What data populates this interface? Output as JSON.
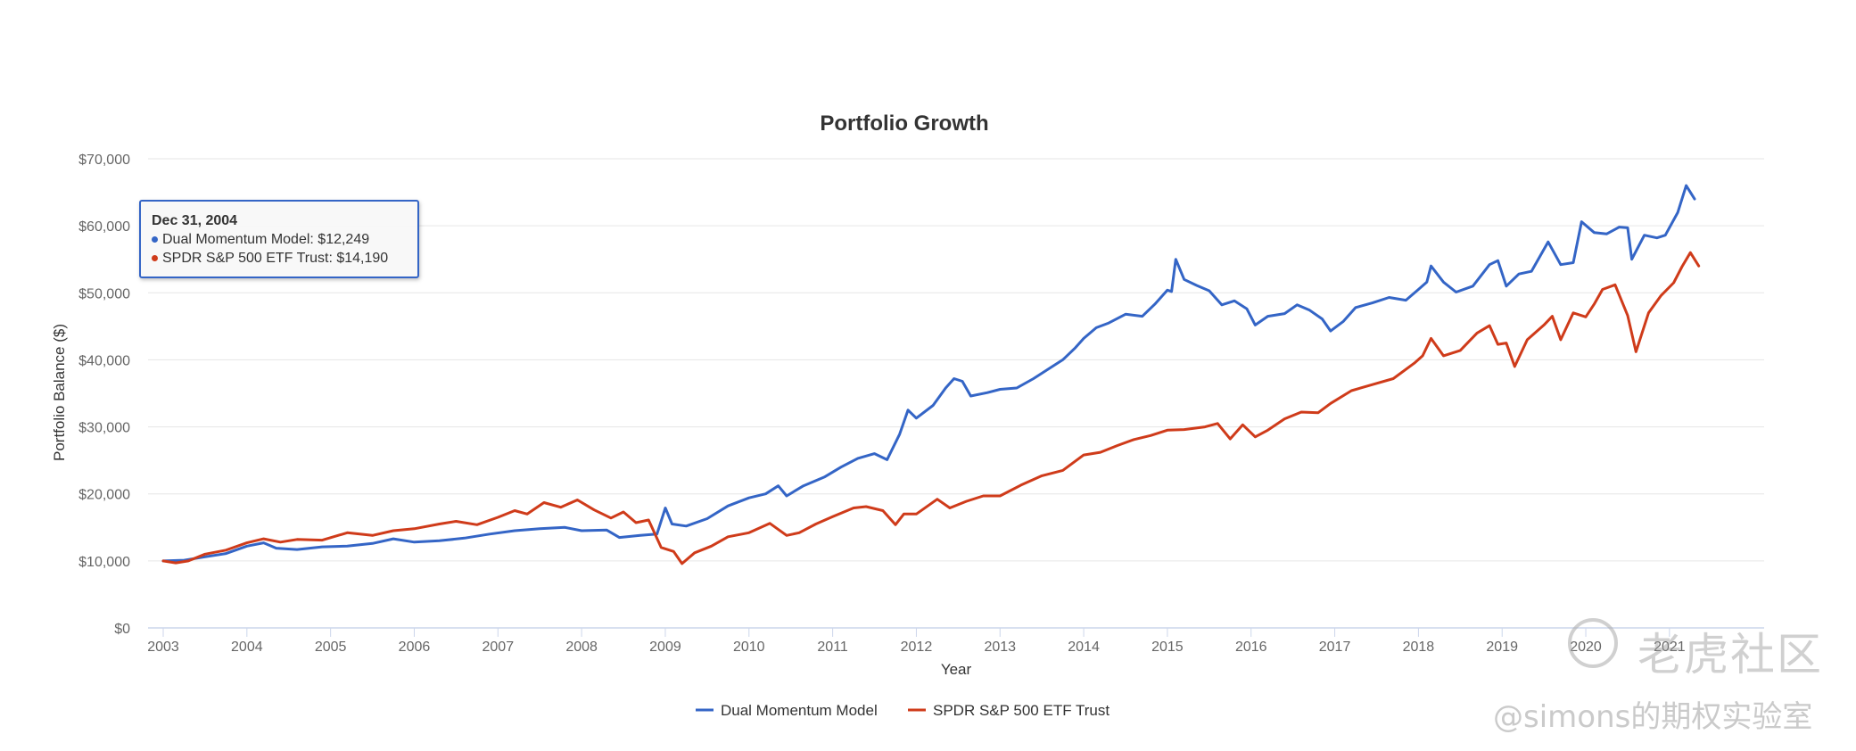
{
  "chart_data": {
    "type": "line",
    "title": "Portfolio Growth",
    "xlabel": "Year",
    "ylabel": "Portfolio Balance ($)",
    "x_ticks": [
      "2003",
      "2004",
      "2005",
      "2006",
      "2007",
      "2008",
      "2009",
      "2010",
      "2011",
      "2012",
      "2013",
      "2014",
      "2015",
      "2016",
      "2017",
      "2018",
      "2019",
      "2020",
      "2021"
    ],
    "y_ticks": [
      "$0",
      "$10,000",
      "$20,000",
      "$30,000",
      "$40,000",
      "$50,000",
      "$60,000",
      "$70,000"
    ],
    "ylim": [
      0,
      70000
    ],
    "xlim": [
      2003.0,
      2021.95
    ],
    "grid": true,
    "legend_position": "bottom-center",
    "series": [
      {
        "name": "Dual Momentum Model",
        "color": "#3465c6",
        "points": [
          [
            2003.0,
            10000
          ],
          [
            2003.25,
            10100
          ],
          [
            2003.5,
            10600
          ],
          [
            2003.75,
            11100
          ],
          [
            2004.0,
            12200
          ],
          [
            2004.2,
            12700
          ],
          [
            2004.35,
            11900
          ],
          [
            2004.6,
            11700
          ],
          [
            2004.9,
            12100
          ],
          [
            2005.2,
            12200
          ],
          [
            2005.5,
            12600
          ],
          [
            2005.75,
            13300
          ],
          [
            2006.0,
            12800
          ],
          [
            2006.3,
            13000
          ],
          [
            2006.6,
            13400
          ],
          [
            2006.9,
            14000
          ],
          [
            2007.2,
            14500
          ],
          [
            2007.5,
            14800
          ],
          [
            2007.8,
            15000
          ],
          [
            2008.0,
            14500
          ],
          [
            2008.3,
            14600
          ],
          [
            2008.45,
            13500
          ],
          [
            2008.7,
            13800
          ],
          [
            2008.9,
            14000
          ],
          [
            2009.0,
            17900
          ],
          [
            2009.08,
            15500
          ],
          [
            2009.25,
            15200
          ],
          [
            2009.5,
            16300
          ],
          [
            2009.75,
            18200
          ],
          [
            2010.0,
            19400
          ],
          [
            2010.2,
            20000
          ],
          [
            2010.35,
            21200
          ],
          [
            2010.45,
            19700
          ],
          [
            2010.65,
            21200
          ],
          [
            2010.9,
            22500
          ],
          [
            2011.1,
            24000
          ],
          [
            2011.3,
            25300
          ],
          [
            2011.5,
            26000
          ],
          [
            2011.65,
            25100
          ],
          [
            2011.8,
            28900
          ],
          [
            2011.9,
            32500
          ],
          [
            2012.0,
            31300
          ],
          [
            2012.2,
            33200
          ],
          [
            2012.35,
            35800
          ],
          [
            2012.45,
            37200
          ],
          [
            2012.55,
            36800
          ],
          [
            2012.65,
            34600
          ],
          [
            2012.85,
            35100
          ],
          [
            2013.0,
            35600
          ],
          [
            2013.2,
            35800
          ],
          [
            2013.4,
            37200
          ],
          [
            2013.6,
            38800
          ],
          [
            2013.75,
            40000
          ],
          [
            2013.9,
            41800
          ],
          [
            2014.0,
            43200
          ],
          [
            2014.15,
            44800
          ],
          [
            2014.3,
            45500
          ],
          [
            2014.5,
            46800
          ],
          [
            2014.7,
            46500
          ],
          [
            2014.85,
            48300
          ],
          [
            2015.0,
            50400
          ],
          [
            2015.05,
            50200
          ],
          [
            2015.1,
            55000
          ],
          [
            2015.2,
            52000
          ],
          [
            2015.35,
            51100
          ],
          [
            2015.5,
            50300
          ],
          [
            2015.65,
            48200
          ],
          [
            2015.8,
            48800
          ],
          [
            2015.95,
            47600
          ],
          [
            2016.05,
            45200
          ],
          [
            2016.2,
            46500
          ],
          [
            2016.4,
            46900
          ],
          [
            2016.55,
            48200
          ],
          [
            2016.7,
            47400
          ],
          [
            2016.85,
            46100
          ],
          [
            2016.95,
            44300
          ],
          [
            2017.1,
            45700
          ],
          [
            2017.25,
            47800
          ],
          [
            2017.45,
            48500
          ],
          [
            2017.65,
            49300
          ],
          [
            2017.85,
            48900
          ],
          [
            2018.0,
            50500
          ],
          [
            2018.1,
            51600
          ],
          [
            2018.15,
            54000
          ],
          [
            2018.3,
            51600
          ],
          [
            2018.45,
            50100
          ],
          [
            2018.65,
            51000
          ],
          [
            2018.85,
            54200
          ],
          [
            2018.95,
            54800
          ],
          [
            2019.05,
            51000
          ],
          [
            2019.2,
            52800
          ],
          [
            2019.35,
            53200
          ],
          [
            2019.55,
            57600
          ],
          [
            2019.7,
            54200
          ],
          [
            2019.85,
            54500
          ],
          [
            2019.95,
            60600
          ],
          [
            2020.1,
            59000
          ],
          [
            2020.25,
            58800
          ],
          [
            2020.4,
            59800
          ],
          [
            2020.5,
            59700
          ],
          [
            2020.55,
            55000
          ],
          [
            2020.7,
            58600
          ],
          [
            2020.85,
            58200
          ],
          [
            2020.95,
            58600
          ],
          [
            2021.1,
            62000
          ],
          [
            2021.2,
            66000
          ],
          [
            2021.3,
            64000
          ]
        ]
      },
      {
        "name": "SPDR S&P 500 ETF Trust",
        "color": "#cf3b1a",
        "points": [
          [
            2003.0,
            10000
          ],
          [
            2003.15,
            9700
          ],
          [
            2003.3,
            10000
          ],
          [
            2003.5,
            11000
          ],
          [
            2003.75,
            11600
          ],
          [
            2004.0,
            12700
          ],
          [
            2004.2,
            13300
          ],
          [
            2004.4,
            12800
          ],
          [
            2004.6,
            13200
          ],
          [
            2004.9,
            13100
          ],
          [
            2005.2,
            14200
          ],
          [
            2005.5,
            13800
          ],
          [
            2005.75,
            14500
          ],
          [
            2006.0,
            14800
          ],
          [
            2006.3,
            15500
          ],
          [
            2006.5,
            15900
          ],
          [
            2006.75,
            15400
          ],
          [
            2007.0,
            16500
          ],
          [
            2007.2,
            17500
          ],
          [
            2007.35,
            17000
          ],
          [
            2007.55,
            18700
          ],
          [
            2007.75,
            18000
          ],
          [
            2007.95,
            19100
          ],
          [
            2008.15,
            17600
          ],
          [
            2008.35,
            16400
          ],
          [
            2008.5,
            17300
          ],
          [
            2008.65,
            15700
          ],
          [
            2008.8,
            16100
          ],
          [
            2008.95,
            12000
          ],
          [
            2009.1,
            11400
          ],
          [
            2009.2,
            9600
          ],
          [
            2009.35,
            11200
          ],
          [
            2009.55,
            12200
          ],
          [
            2009.75,
            13600
          ],
          [
            2010.0,
            14200
          ],
          [
            2010.25,
            15600
          ],
          [
            2010.45,
            13800
          ],
          [
            2010.6,
            14200
          ],
          [
            2010.8,
            15500
          ],
          [
            2011.0,
            16600
          ],
          [
            2011.25,
            17900
          ],
          [
            2011.4,
            18100
          ],
          [
            2011.6,
            17500
          ],
          [
            2011.75,
            15400
          ],
          [
            2011.85,
            17000
          ],
          [
            2012.0,
            17000
          ],
          [
            2012.25,
            19200
          ],
          [
            2012.4,
            17900
          ],
          [
            2012.6,
            18900
          ],
          [
            2012.8,
            19700
          ],
          [
            2013.0,
            19700
          ],
          [
            2013.25,
            21300
          ],
          [
            2013.5,
            22700
          ],
          [
            2013.75,
            23500
          ],
          [
            2014.0,
            25800
          ],
          [
            2014.2,
            26200
          ],
          [
            2014.4,
            27200
          ],
          [
            2014.6,
            28100
          ],
          [
            2014.8,
            28700
          ],
          [
            2015.0,
            29500
          ],
          [
            2015.2,
            29600
          ],
          [
            2015.45,
            30000
          ],
          [
            2015.6,
            30500
          ],
          [
            2015.75,
            28200
          ],
          [
            2015.9,
            30300
          ],
          [
            2016.05,
            28500
          ],
          [
            2016.2,
            29500
          ],
          [
            2016.4,
            31200
          ],
          [
            2016.6,
            32200
          ],
          [
            2016.8,
            32100
          ],
          [
            2016.95,
            33500
          ],
          [
            2017.2,
            35400
          ],
          [
            2017.45,
            36300
          ],
          [
            2017.7,
            37200
          ],
          [
            2017.95,
            39500
          ],
          [
            2018.05,
            40600
          ],
          [
            2018.15,
            43200
          ],
          [
            2018.3,
            40600
          ],
          [
            2018.5,
            41400
          ],
          [
            2018.7,
            44000
          ],
          [
            2018.85,
            45100
          ],
          [
            2018.95,
            42300
          ],
          [
            2019.05,
            42500
          ],
          [
            2019.15,
            39000
          ],
          [
            2019.3,
            43000
          ],
          [
            2019.5,
            45200
          ],
          [
            2019.6,
            46500
          ],
          [
            2019.7,
            43000
          ],
          [
            2019.85,
            47000
          ],
          [
            2020.0,
            46400
          ],
          [
            2020.1,
            48300
          ],
          [
            2020.2,
            50500
          ],
          [
            2020.35,
            51200
          ],
          [
            2020.5,
            46600
          ],
          [
            2020.6,
            41200
          ],
          [
            2020.75,
            47000
          ],
          [
            2020.9,
            49600
          ],
          [
            2021.05,
            51500
          ],
          [
            2021.15,
            53900
          ],
          [
            2021.25,
            56000
          ],
          [
            2021.35,
            54000
          ]
        ]
      }
    ]
  },
  "tooltip": {
    "date": "Dec 31, 2004",
    "rows": [
      {
        "label": "Dual Momentum Model: $12,249",
        "color": "#3465c6"
      },
      {
        "label": "SPDR S&P 500 ETF Trust: $14,190",
        "color": "#cf3b1a"
      }
    ]
  },
  "watermark": {
    "brand": "老虎社区",
    "handle": "@simons的期权实验室"
  }
}
